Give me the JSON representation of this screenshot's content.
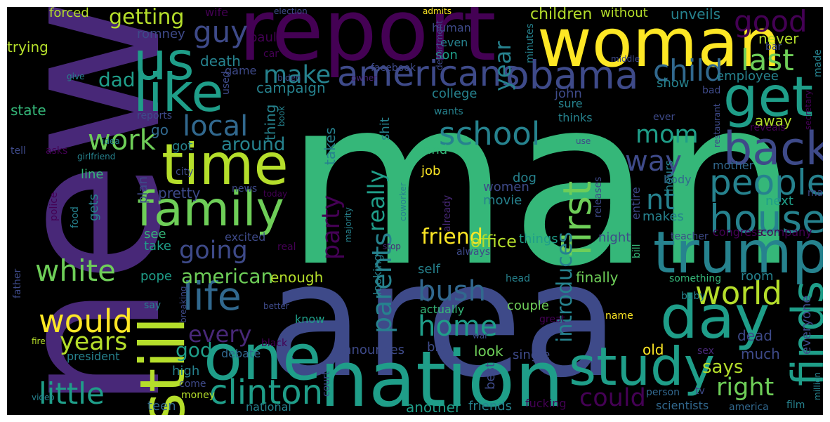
{
  "palette": {
    "dark_purple": "#440154",
    "purple": "#482878",
    "indigo": "#3e4a89",
    "blue": "#31688e",
    "teal": "#26828e",
    "green_teal": "#1f9e89",
    "green": "#35b779",
    "light_green": "#6ece58",
    "yellow_green": "#b5de2b",
    "yellow": "#fde725",
    "background": "#000000",
    "frame": "#ffffff"
  },
  "words": [
    {
      "text": "man"
    },
    {
      "text": "new"
    },
    {
      "text": "area"
    },
    {
      "text": "report"
    },
    {
      "text": "woman"
    },
    {
      "text": "nation"
    },
    {
      "text": "trump"
    },
    {
      "text": "study"
    },
    {
      "text": "one"
    },
    {
      "text": "day"
    },
    {
      "text": "still"
    },
    {
      "text": "time"
    },
    {
      "text": "us"
    },
    {
      "text": "like"
    },
    {
      "text": "get"
    },
    {
      "text": "family"
    },
    {
      "text": "back"
    },
    {
      "text": "finds"
    },
    {
      "text": "obama"
    },
    {
      "text": "americans"
    },
    {
      "text": "house"
    },
    {
      "text": "people"
    },
    {
      "text": "first"
    },
    {
      "text": "life"
    },
    {
      "text": "clinton"
    },
    {
      "text": "school"
    },
    {
      "text": "would"
    },
    {
      "text": "white"
    },
    {
      "text": "world"
    },
    {
      "text": "little"
    },
    {
      "text": "child"
    },
    {
      "text": "good"
    },
    {
      "text": "guy"
    },
    {
      "text": "last"
    },
    {
      "text": "make"
    },
    {
      "text": "going"
    },
    {
      "text": "local"
    },
    {
      "text": "work"
    },
    {
      "text": "way"
    },
    {
      "text": "mom"
    },
    {
      "text": "nt"
    },
    {
      "text": "bush"
    },
    {
      "text": "home"
    },
    {
      "text": "parents"
    },
    {
      "text": "years"
    },
    {
      "text": "every"
    },
    {
      "text": "could"
    },
    {
      "text": "right"
    },
    {
      "text": "party"
    },
    {
      "text": "really"
    },
    {
      "text": "introduces"
    },
    {
      "text": "year"
    },
    {
      "text": "getting"
    },
    {
      "text": "dad"
    },
    {
      "text": "friend"
    },
    {
      "text": "american"
    },
    {
      "text": "around"
    },
    {
      "text": "says"
    },
    {
      "text": "god"
    },
    {
      "text": "office"
    },
    {
      "text": "children"
    },
    {
      "text": "unveils"
    },
    {
      "text": "without"
    },
    {
      "text": "romney"
    },
    {
      "text": "trying"
    },
    {
      "text": "forced"
    },
    {
      "text": "wife"
    },
    {
      "text": "paul"
    },
    {
      "text": "death"
    },
    {
      "text": "campaign"
    },
    {
      "text": "thing"
    },
    {
      "text": "state"
    },
    {
      "text": "go"
    },
    {
      "text": "got"
    },
    {
      "text": "son"
    },
    {
      "text": "even"
    },
    {
      "text": "human"
    },
    {
      "text": "college"
    },
    {
      "text": "takes"
    },
    {
      "text": "shit"
    },
    {
      "text": "find"
    },
    {
      "text": "job"
    },
    {
      "text": "dog"
    },
    {
      "text": "women"
    },
    {
      "text": "movie"
    },
    {
      "text": "pretty"
    },
    {
      "text": "plan"
    },
    {
      "text": "line"
    },
    {
      "text": "gets"
    },
    {
      "text": "see"
    },
    {
      "text": "take"
    },
    {
      "text": "excited"
    },
    {
      "text": "real"
    },
    {
      "text": "pope"
    },
    {
      "text": "enough"
    },
    {
      "text": "self"
    },
    {
      "text": "looking"
    },
    {
      "text": "know"
    },
    {
      "text": "debate"
    },
    {
      "text": "black"
    },
    {
      "text": "high"
    },
    {
      "text": "come"
    },
    {
      "text": "money"
    },
    {
      "text": "teen"
    },
    {
      "text": "national"
    },
    {
      "text": "another"
    },
    {
      "text": "friends"
    },
    {
      "text": "announces"
    },
    {
      "text": "big"
    },
    {
      "text": "look"
    },
    {
      "text": "best"
    },
    {
      "text": "court"
    },
    {
      "text": "single"
    },
    {
      "text": "fucking"
    },
    {
      "text": "scientists"
    },
    {
      "text": "america"
    },
    {
      "text": "person"
    },
    {
      "text": "tv"
    },
    {
      "text": "sex"
    },
    {
      "text": "film"
    },
    {
      "text": "million"
    },
    {
      "text": "everyone"
    },
    {
      "text": "dead"
    },
    {
      "text": "much"
    },
    {
      "text": "old"
    },
    {
      "text": "name"
    },
    {
      "text": "great"
    },
    {
      "text": "baby"
    },
    {
      "text": "something"
    },
    {
      "text": "room"
    },
    {
      "text": "finally"
    },
    {
      "text": "head"
    },
    {
      "text": "actually"
    },
    {
      "text": "couple"
    },
    {
      "text": "things"
    },
    {
      "text": "night"
    },
    {
      "text": "makes"
    },
    {
      "text": "bill"
    },
    {
      "text": "teacher"
    },
    {
      "text": "congress"
    },
    {
      "text": "company"
    },
    {
      "text": "next"
    },
    {
      "text": "may"
    },
    {
      "text": "mother"
    },
    {
      "text": "body"
    },
    {
      "text": "hours"
    },
    {
      "text": "entire"
    },
    {
      "text": "releases"
    },
    {
      "text": "away"
    },
    {
      "text": "thinks"
    },
    {
      "text": "sure"
    },
    {
      "text": "use"
    },
    {
      "text": "john"
    },
    {
      "text": "show"
    },
    {
      "text": "employee"
    },
    {
      "text": "bad"
    },
    {
      "text": "never"
    },
    {
      "text": "bar"
    },
    {
      "text": "made"
    },
    {
      "text": "secretary"
    },
    {
      "text": "restaurant"
    },
    {
      "text": "reveals"
    },
    {
      "text": "ever"
    },
    {
      "text": "middle"
    },
    {
      "text": "admits"
    },
    {
      "text": "election"
    },
    {
      "text": "department"
    },
    {
      "text": "minutes"
    },
    {
      "text": "owner"
    },
    {
      "text": "facebook"
    },
    {
      "text": "biden"
    },
    {
      "text": "car"
    },
    {
      "text": "game"
    },
    {
      "text": "used"
    },
    {
      "text": "give"
    },
    {
      "text": "reports"
    },
    {
      "text": "idea"
    },
    {
      "text": "tell"
    },
    {
      "text": "asks"
    },
    {
      "text": "girlfriend"
    },
    {
      "text": "city"
    },
    {
      "text": "news"
    },
    {
      "text": "today"
    },
    {
      "text": "police"
    },
    {
      "text": "food"
    },
    {
      "text": "majority"
    },
    {
      "text": "coworker"
    },
    {
      "text": "already"
    },
    {
      "text": "stop"
    },
    {
      "text": "always"
    },
    {
      "text": "father"
    },
    {
      "text": "say"
    },
    {
      "text": "breaking"
    },
    {
      "text": "better"
    },
    {
      "text": "war"
    },
    {
      "text": "fire"
    },
    {
      "text": "president"
    },
    {
      "text": "video"
    },
    {
      "text": "book"
    },
    {
      "text": "wants"
    },
    {
      "text": "election2"
    },
    {
      "text": "parents2"
    }
  ]
}
